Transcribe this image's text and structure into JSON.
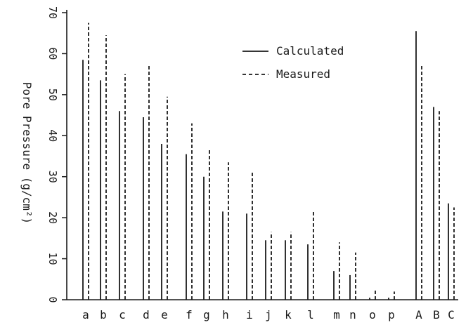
{
  "chart_data": {
    "type": "bar",
    "title": "",
    "xlabel": "",
    "ylabel": "Pore Pressure (g/cm²)",
    "ylim": [
      0,
      70
    ],
    "yticks": [
      0,
      10,
      20,
      30,
      40,
      50,
      60,
      70
    ],
    "categories": [
      "a",
      "b",
      "c",
      "d",
      "e",
      "f",
      "g",
      "h",
      "i",
      "j",
      "k",
      "l",
      "m",
      "n",
      "o",
      "p",
      "A",
      "B",
      "C"
    ],
    "legend_position": "top-right",
    "series": [
      {
        "name": "Calculated",
        "style": "solid",
        "color": "#1a1a1a",
        "values": [
          58.5,
          53.5,
          46,
          44.5,
          38,
          35.5,
          30,
          21.5,
          21,
          14.5,
          14.5,
          13.5,
          7,
          6,
          0.5,
          0.5,
          65.5,
          47,
          23.5
        ]
      },
      {
        "name": "Measured",
        "style": "dashed",
        "color": "#1a1a1a",
        "values": [
          67.5,
          64.5,
          55,
          57,
          49.5,
          43,
          36.5,
          33.5,
          31.5,
          16.5,
          16.5,
          21.5,
          14,
          11.5,
          2.5,
          2,
          57,
          46,
          22.5
        ]
      }
    ]
  }
}
